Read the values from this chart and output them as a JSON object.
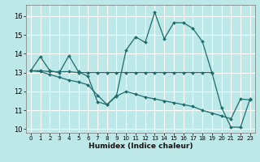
{
  "xlabel": "Humidex (Indice chaleur)",
  "background_color": "#bde8e8",
  "grid_color": "#ffffff",
  "line_color": "#1e6b6b",
  "xlim": [
    -0.5,
    23.5
  ],
  "ylim": [
    9.8,
    16.6
  ],
  "yticks": [
    10,
    11,
    12,
    13,
    14,
    15,
    16
  ],
  "xticks": [
    0,
    1,
    2,
    3,
    4,
    5,
    6,
    7,
    8,
    9,
    10,
    11,
    12,
    13,
    14,
    15,
    16,
    17,
    18,
    19,
    20,
    21,
    22,
    23
  ],
  "line1_x": [
    0,
    1,
    2,
    3,
    4,
    5,
    6,
    7,
    8,
    9,
    10,
    11,
    12,
    13,
    14,
    15,
    16,
    17,
    18,
    19,
    20,
    21,
    22,
    23
  ],
  "line1_y": [
    13.1,
    13.85,
    13.1,
    13.0,
    13.9,
    13.05,
    12.8,
    11.45,
    11.3,
    11.8,
    14.2,
    14.9,
    14.6,
    16.2,
    14.8,
    15.65,
    15.65,
    15.35,
    14.65,
    13.0,
    11.15,
    10.1,
    10.1,
    11.6
  ],
  "line2_x": [
    0,
    1,
    2,
    3,
    4,
    5,
    6,
    7,
    8,
    9,
    10,
    11,
    12,
    13,
    14,
    15,
    16,
    17,
    18,
    19
  ],
  "line2_y": [
    13.1,
    13.1,
    13.05,
    13.05,
    13.05,
    13.0,
    13.0,
    13.0,
    13.0,
    13.0,
    13.0,
    13.0,
    13.0,
    13.0,
    13.0,
    13.0,
    13.0,
    13.0,
    13.0,
    13.0
  ],
  "line3_x": [
    0,
    1,
    2,
    3,
    4,
    5,
    6,
    7,
    8,
    9,
    10,
    11,
    12,
    13,
    14,
    15,
    16,
    17,
    18,
    19,
    20,
    21,
    22,
    23
  ],
  "line3_y": [
    13.1,
    13.05,
    12.9,
    12.75,
    12.6,
    12.5,
    12.35,
    11.8,
    11.3,
    11.75,
    12.0,
    11.85,
    11.7,
    11.6,
    11.5,
    11.4,
    11.3,
    11.2,
    11.0,
    10.85,
    10.7,
    10.55,
    11.6,
    11.55
  ]
}
